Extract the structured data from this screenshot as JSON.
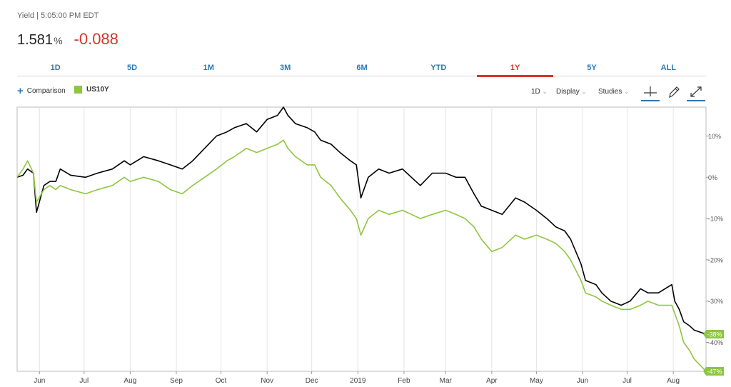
{
  "header": {
    "label": "Yield | 5:05:00 PM EDT",
    "price": "1.581",
    "price_unit": "%",
    "change": "-0.088"
  },
  "range_tabs": [
    {
      "label": "1D",
      "active": false
    },
    {
      "label": "5D",
      "active": false
    },
    {
      "label": "1M",
      "active": false
    },
    {
      "label": "3M",
      "active": false
    },
    {
      "label": "6M",
      "active": false
    },
    {
      "label": "YTD",
      "active": false
    },
    {
      "label": "1Y",
      "active": true
    },
    {
      "label": "5Y",
      "active": false
    },
    {
      "label": "ALL",
      "active": false
    }
  ],
  "toolbar": {
    "comparison_label": "Comparison",
    "interval_label": "1D",
    "display_label": "Display",
    "studies_label": "Studies",
    "icons": [
      "crosshair-icon",
      "pencil-icon",
      "expand-icon"
    ]
  },
  "colors": {
    "main_series": "#000000",
    "comparison_series": "#8dc63f",
    "negative_change": "#d9342b",
    "tab_text": "#2b79b8"
  },
  "chart_data": {
    "type": "line",
    "y_unit": "%",
    "ylim": [
      -47,
      17
    ],
    "y_ticks": [
      10,
      0,
      -10,
      -20,
      -30,
      -40
    ],
    "y_tick_labels": [
      "10%",
      "0%",
      "-10%",
      "-20%",
      "-30%",
      "-40%"
    ],
    "x_range": [
      "2018-05-17",
      "2019-08-23"
    ],
    "x_ticks": [
      {
        "date": "2018-06-01",
        "label": "Jun"
      },
      {
        "date": "2018-07-01",
        "label": "Jul"
      },
      {
        "date": "2018-08-01",
        "label": "Aug"
      },
      {
        "date": "2018-09-01",
        "label": "Sep"
      },
      {
        "date": "2018-10-01",
        "label": "Oct"
      },
      {
        "date": "2018-11-01",
        "label": "Nov"
      },
      {
        "date": "2018-12-01",
        "label": "Dec"
      },
      {
        "date": "2019-01-01",
        "label": "2019"
      },
      {
        "date": "2019-02-01",
        "label": "Feb"
      },
      {
        "date": "2019-03-01",
        "label": "Mar"
      },
      {
        "date": "2019-04-01",
        "label": "Apr"
      },
      {
        "date": "2019-05-01",
        "label": "May"
      },
      {
        "date": "2019-06-01",
        "label": "Jun"
      },
      {
        "date": "2019-07-01",
        "label": "Jul"
      },
      {
        "date": "2019-08-01",
        "label": "Aug"
      }
    ],
    "grid": {
      "vertical": true,
      "horizontal": false
    },
    "series": [
      {
        "name": "",
        "color": "#000000",
        "end_label": "-38%",
        "points": [
          [
            "2018-05-17",
            0
          ],
          [
            "2018-05-21",
            0.5
          ],
          [
            "2018-05-24",
            2
          ],
          [
            "2018-05-28",
            1
          ],
          [
            "2018-05-30",
            -8.5
          ],
          [
            "2018-06-04",
            -2
          ],
          [
            "2018-06-08",
            -1
          ],
          [
            "2018-06-12",
            -1
          ],
          [
            "2018-06-15",
            2
          ],
          [
            "2018-06-22",
            0.5
          ],
          [
            "2018-07-02",
            0
          ],
          [
            "2018-07-10",
            1
          ],
          [
            "2018-07-20",
            2
          ],
          [
            "2018-07-28",
            4
          ],
          [
            "2018-08-01",
            3
          ],
          [
            "2018-08-10",
            5
          ],
          [
            "2018-08-20",
            4
          ],
          [
            "2018-08-28",
            3
          ],
          [
            "2018-09-05",
            2
          ],
          [
            "2018-09-12",
            4
          ],
          [
            "2018-09-20",
            7
          ],
          [
            "2018-09-28",
            10
          ],
          [
            "2018-10-05",
            11
          ],
          [
            "2018-10-10",
            12
          ],
          [
            "2018-10-18",
            13
          ],
          [
            "2018-10-25",
            11
          ],
          [
            "2018-11-01",
            14
          ],
          [
            "2018-11-08",
            15
          ],
          [
            "2018-11-12",
            17
          ],
          [
            "2018-11-15",
            15
          ],
          [
            "2018-11-20",
            13
          ],
          [
            "2018-11-28",
            12
          ],
          [
            "2018-12-03",
            11
          ],
          [
            "2018-12-07",
            9
          ],
          [
            "2018-12-14",
            8
          ],
          [
            "2018-12-20",
            6
          ],
          [
            "2018-12-27",
            4
          ],
          [
            "2018-12-31",
            3
          ],
          [
            "2019-01-03",
            -5
          ],
          [
            "2019-01-08",
            0
          ],
          [
            "2019-01-15",
            2
          ],
          [
            "2019-01-22",
            1
          ],
          [
            "2019-01-31",
            2
          ],
          [
            "2019-02-06",
            0
          ],
          [
            "2019-02-12",
            -2
          ],
          [
            "2019-02-20",
            1
          ],
          [
            "2019-03-01",
            1
          ],
          [
            "2019-03-08",
            0
          ],
          [
            "2019-03-14",
            0
          ],
          [
            "2019-03-20",
            -4
          ],
          [
            "2019-03-25",
            -7
          ],
          [
            "2019-04-01",
            -8
          ],
          [
            "2019-04-08",
            -9
          ],
          [
            "2019-04-17",
            -5
          ],
          [
            "2019-04-23",
            -6
          ],
          [
            "2019-05-01",
            -8
          ],
          [
            "2019-05-08",
            -10
          ],
          [
            "2019-05-14",
            -12
          ],
          [
            "2019-05-20",
            -13
          ],
          [
            "2019-05-24",
            -15
          ],
          [
            "2019-05-31",
            -21
          ],
          [
            "2019-06-03",
            -25
          ],
          [
            "2019-06-10",
            -26
          ],
          [
            "2019-06-14",
            -28
          ],
          [
            "2019-06-20",
            -30
          ],
          [
            "2019-06-27",
            -31
          ],
          [
            "2019-07-03",
            -30
          ],
          [
            "2019-07-10",
            -27
          ],
          [
            "2019-07-15",
            -28
          ],
          [
            "2019-07-22",
            -28
          ],
          [
            "2019-07-31",
            -26
          ],
          [
            "2019-08-02",
            -30
          ],
          [
            "2019-08-05",
            -32
          ],
          [
            "2019-08-08",
            -35
          ],
          [
            "2019-08-12",
            -36
          ],
          [
            "2019-08-15",
            -37
          ],
          [
            "2019-08-23",
            -38
          ]
        ]
      },
      {
        "name": "US10Y",
        "color": "#8dc63f",
        "end_label": "-47%",
        "points": [
          [
            "2018-05-17",
            0
          ],
          [
            "2018-05-21",
            2
          ],
          [
            "2018-05-24",
            4
          ],
          [
            "2018-05-28",
            1
          ],
          [
            "2018-05-30",
            -6
          ],
          [
            "2018-06-04",
            -3
          ],
          [
            "2018-06-08",
            -2
          ],
          [
            "2018-06-12",
            -3
          ],
          [
            "2018-06-15",
            -2
          ],
          [
            "2018-06-22",
            -3
          ],
          [
            "2018-07-02",
            -4
          ],
          [
            "2018-07-10",
            -3
          ],
          [
            "2018-07-20",
            -2
          ],
          [
            "2018-07-28",
            0
          ],
          [
            "2018-08-01",
            -1
          ],
          [
            "2018-08-10",
            0
          ],
          [
            "2018-08-20",
            -1
          ],
          [
            "2018-08-28",
            -3
          ],
          [
            "2018-09-05",
            -4
          ],
          [
            "2018-09-12",
            -2
          ],
          [
            "2018-09-20",
            0
          ],
          [
            "2018-09-28",
            2
          ],
          [
            "2018-10-05",
            4
          ],
          [
            "2018-10-10",
            5
          ],
          [
            "2018-10-18",
            7
          ],
          [
            "2018-10-25",
            6
          ],
          [
            "2018-11-01",
            7
          ],
          [
            "2018-11-08",
            8
          ],
          [
            "2018-11-12",
            9
          ],
          [
            "2018-11-15",
            7
          ],
          [
            "2018-11-20",
            5
          ],
          [
            "2018-11-28",
            3
          ],
          [
            "2018-12-03",
            3
          ],
          [
            "2018-12-07",
            0
          ],
          [
            "2018-12-14",
            -2
          ],
          [
            "2018-12-20",
            -5
          ],
          [
            "2018-12-27",
            -8
          ],
          [
            "2018-12-31",
            -10
          ],
          [
            "2019-01-03",
            -14
          ],
          [
            "2019-01-08",
            -10
          ],
          [
            "2019-01-15",
            -8
          ],
          [
            "2019-01-22",
            -9
          ],
          [
            "2019-01-31",
            -8
          ],
          [
            "2019-02-06",
            -9
          ],
          [
            "2019-02-12",
            -10
          ],
          [
            "2019-02-20",
            -9
          ],
          [
            "2019-03-01",
            -8
          ],
          [
            "2019-03-08",
            -9
          ],
          [
            "2019-03-14",
            -10
          ],
          [
            "2019-03-20",
            -12
          ],
          [
            "2019-03-25",
            -15
          ],
          [
            "2019-04-01",
            -18
          ],
          [
            "2019-04-08",
            -17
          ],
          [
            "2019-04-17",
            -14
          ],
          [
            "2019-04-23",
            -15
          ],
          [
            "2019-05-01",
            -14
          ],
          [
            "2019-05-08",
            -15
          ],
          [
            "2019-05-14",
            -16
          ],
          [
            "2019-05-20",
            -18
          ],
          [
            "2019-05-24",
            -20
          ],
          [
            "2019-05-31",
            -25
          ],
          [
            "2019-06-03",
            -28
          ],
          [
            "2019-06-10",
            -29
          ],
          [
            "2019-06-14",
            -30
          ],
          [
            "2019-06-20",
            -31
          ],
          [
            "2019-06-27",
            -32
          ],
          [
            "2019-07-03",
            -32
          ],
          [
            "2019-07-10",
            -31
          ],
          [
            "2019-07-15",
            -30
          ],
          [
            "2019-07-22",
            -31
          ],
          [
            "2019-07-31",
            -31
          ],
          [
            "2019-08-02",
            -33
          ],
          [
            "2019-08-05",
            -36
          ],
          [
            "2019-08-08",
            -40
          ],
          [
            "2019-08-12",
            -42
          ],
          [
            "2019-08-15",
            -44
          ],
          [
            "2019-08-23",
            -47
          ]
        ]
      }
    ]
  }
}
